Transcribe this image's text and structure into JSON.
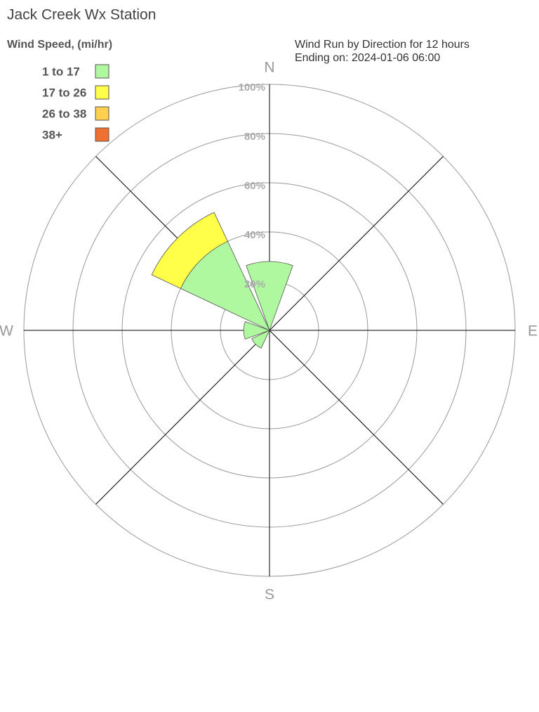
{
  "chart_data": {
    "type": "windrose",
    "title": "Jack Creek Wx Station",
    "legend_title": "Wind Speed, (mi/hr)",
    "subtitle": [
      "Wind Run by Direction for 12 hours",
      "Ending on: 2024-01-06 06:00"
    ],
    "categories": [
      "N",
      null,
      "E",
      null,
      "S",
      null,
      "W",
      null
    ],
    "series": [
      {
        "name": "1 to 17",
        "color": "#b0f8a0",
        "values": [
          28,
          0,
          0,
          0,
          0,
          8,
          10.5,
          40
        ]
      },
      {
        "name": "17 to 26",
        "color": "#ffff4a",
        "values": [
          0,
          0,
          0,
          0,
          0,
          0,
          0,
          13
        ]
      },
      {
        "name": "26 to 38",
        "color": "#ffcf50",
        "values": [
          0,
          0,
          0,
          0,
          0,
          0,
          0,
          0
        ]
      },
      {
        "name": "38+",
        "color": "#f07030",
        "values": [
          0,
          0,
          0,
          0,
          0,
          0,
          0,
          0
        ]
      }
    ],
    "rlim": [
      0,
      100
    ],
    "rticks": [
      {
        "value": 20,
        "label": "20%"
      },
      {
        "value": 40,
        "label": "40%"
      },
      {
        "value": 60,
        "label": "60%"
      },
      {
        "value": 80,
        "label": "80%"
      },
      {
        "value": 100,
        "label": "100%"
      }
    ],
    "grid": true
  }
}
